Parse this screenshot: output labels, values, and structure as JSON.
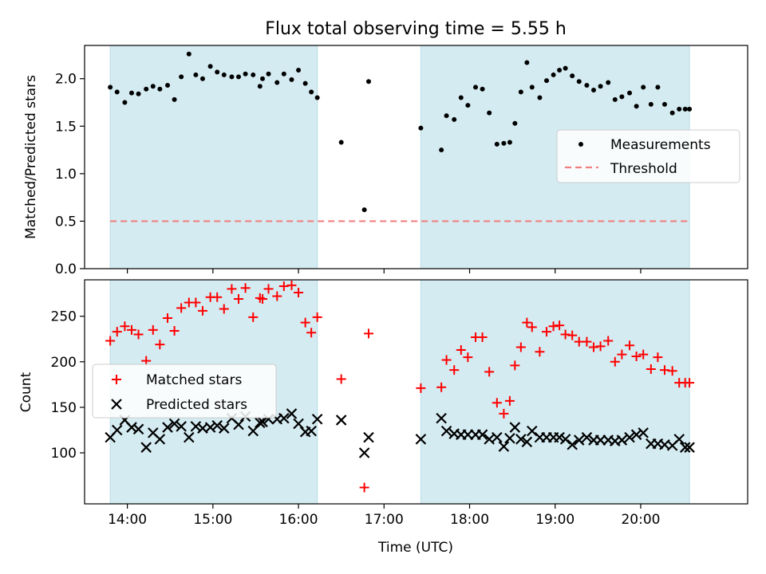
{
  "chart_data": {
    "title": "Flux total observing time = 5.55 h",
    "xlabel": "Time (UTC)",
    "xlim": [
      13.5,
      21.25
    ],
    "x_ticks": [
      14,
      15,
      16,
      17,
      18,
      19,
      20
    ],
    "x_tick_labels": [
      "14:00",
      "15:00",
      "16:00",
      "17:00",
      "18:00",
      "19:00",
      "20:00"
    ],
    "observing_windows": [
      [
        13.8,
        16.22
      ],
      [
        17.43,
        20.57
      ]
    ],
    "window_color": "#d4ebf1",
    "panels": [
      {
        "type": "scatter",
        "ylabel": "Matched/Predicted stars",
        "ylim": [
          0,
          2.35
        ],
        "y_ticks": [
          0,
          0.5,
          1,
          1.5,
          2
        ],
        "y_tick_labels": [
          "0.0",
          "0.5",
          "1.0",
          "1.5",
          "2.0"
        ],
        "legend_position": "center-right",
        "legend": [
          "Measurements",
          "Threshold"
        ],
        "threshold": {
          "name": "Threshold",
          "value": 0.5,
          "x_range": [
            13.8,
            20.57
          ],
          "color": "#f08080"
        },
        "series": [
          {
            "name": "Measurements",
            "marker": "dot",
            "color": "#000000",
            "x": [
              13.8,
              13.88,
              13.97,
              14.05,
              14.13,
              14.22,
              14.3,
              14.38,
              14.47,
              14.55,
              14.63,
              14.72,
              14.8,
              14.88,
              14.97,
              15.05,
              15.13,
              15.22,
              15.3,
              15.38,
              15.47,
              15.55,
              15.58,
              15.65,
              15.75,
              15.83,
              15.92,
              16.0,
              16.08,
              16.15,
              16.22,
              16.5,
              16.77,
              16.82,
              17.43,
              17.67,
              17.73,
              17.82,
              17.9,
              17.98,
              18.07,
              18.15,
              18.23,
              18.32,
              18.4,
              18.47,
              18.53,
              18.6,
              18.67,
              18.73,
              18.82,
              18.9,
              18.98,
              19.05,
              19.12,
              19.2,
              19.28,
              19.37,
              19.45,
              19.53,
              19.62,
              19.7,
              19.78,
              19.87,
              19.95,
              20.03,
              20.12,
              20.2,
              20.28,
              20.37,
              20.45,
              20.52,
              20.57
            ],
            "y": [
              1.91,
              1.86,
              1.75,
              1.85,
              1.84,
              1.89,
              1.92,
              1.89,
              1.93,
              1.78,
              2.02,
              2.26,
              2.04,
              2.0,
              2.13,
              2.07,
              2.04,
              2.02,
              2.02,
              2.05,
              2.04,
              1.92,
              2.0,
              2.05,
              1.96,
              2.05,
              1.99,
              2.09,
              1.95,
              1.86,
              1.8,
              1.33,
              0.62,
              1.97,
              1.48,
              1.25,
              1.61,
              1.57,
              1.8,
              1.72,
              1.91,
              1.89,
              1.64,
              1.31,
              1.32,
              1.33,
              1.53,
              1.86,
              2.17,
              1.91,
              1.8,
              1.98,
              2.04,
              2.09,
              2.11,
              2.03,
              1.97,
              1.93,
              1.88,
              1.92,
              1.96,
              1.78,
              1.81,
              1.85,
              1.71,
              1.91,
              1.73,
              1.91,
              1.73,
              1.64,
              1.68,
              1.68,
              1.68
            ]
          }
        ]
      },
      {
        "type": "scatter",
        "ylabel": "Count",
        "ylim": [
          44,
          290
        ],
        "y_ticks": [
          100,
          150,
          200,
          250
        ],
        "y_tick_labels": [
          "100",
          "150",
          "200",
          "250"
        ],
        "legend_position": "center-left",
        "legend": [
          "Matched stars",
          "Predicted stars"
        ],
        "series": [
          {
            "name": "Matched stars",
            "marker": "plus",
            "color": "#ff0000",
            "x": [
              13.8,
              13.88,
              13.97,
              14.05,
              14.13,
              14.22,
              14.3,
              14.38,
              14.47,
              14.55,
              14.63,
              14.72,
              14.8,
              14.88,
              14.97,
              15.05,
              15.13,
              15.22,
              15.3,
              15.38,
              15.47,
              15.55,
              15.58,
              15.65,
              15.75,
              15.83,
              15.92,
              16.0,
              16.08,
              16.15,
              16.22,
              16.5,
              16.77,
              16.82,
              17.43,
              17.67,
              17.73,
              17.82,
              17.9,
              17.98,
              18.07,
              18.15,
              18.23,
              18.32,
              18.4,
              18.47,
              18.53,
              18.6,
              18.67,
              18.73,
              18.82,
              18.9,
              18.98,
              19.05,
              19.12,
              19.2,
              19.28,
              19.37,
              19.45,
              19.53,
              19.62,
              19.7,
              19.78,
              19.87,
              19.95,
              20.03,
              20.12,
              20.2,
              20.28,
              20.37,
              20.45,
              20.52,
              20.57
            ],
            "y": [
              223,
              233,
              239,
              235,
              230,
              201,
              235,
              219,
              248,
              234,
              259,
              265,
              265,
              256,
              271,
              271,
              258,
              280,
              269,
              281,
              249,
              270,
              269,
              280,
              272,
              283,
              284,
              276,
              243,
              232,
              249,
              181,
              62,
              231,
              171,
              172,
              202,
              191,
              213,
              205,
              227,
              227,
              189,
              155,
              143,
              157,
              196,
              216,
              243,
              238,
              211,
              233,
              239,
              240,
              230,
              229,
              222,
              222,
              216,
              217,
              223,
              200,
              208,
              218,
              206,
              208,
              192,
              205,
              191,
              190,
              177,
              177,
              177
            ]
          },
          {
            "name": "Predicted stars",
            "marker": "cross",
            "color": "#000000",
            "x": [
              13.8,
              13.88,
              13.97,
              14.05,
              14.13,
              14.22,
              14.3,
              14.38,
              14.47,
              14.55,
              14.63,
              14.72,
              14.8,
              14.88,
              14.97,
              15.05,
              15.13,
              15.22,
              15.3,
              15.38,
              15.47,
              15.55,
              15.58,
              15.65,
              15.75,
              15.83,
              15.92,
              16.0,
              16.08,
              16.15,
              16.22,
              16.5,
              16.77,
              16.82,
              17.43,
              17.67,
              17.73,
              17.82,
              17.9,
              17.98,
              18.07,
              18.15,
              18.23,
              18.32,
              18.4,
              18.47,
              18.53,
              18.6,
              18.67,
              18.73,
              18.82,
              18.9,
              18.98,
              19.05,
              19.12,
              19.2,
              19.28,
              19.37,
              19.45,
              19.53,
              19.62,
              19.7,
              19.78,
              19.87,
              19.95,
              20.03,
              20.12,
              20.2,
              20.28,
              20.37,
              20.45,
              20.52,
              20.57
            ],
            "y": [
              117,
              125,
              136,
              128,
              126,
              106,
              122,
              115,
              128,
              132,
              129,
              117,
              129,
              127,
              128,
              130,
              127,
              138,
              131,
              140,
              124,
              133,
              134,
              137,
              137,
              138,
              143,
              132,
              123,
              124,
              137,
              136,
              100,
              117,
              115,
              138,
              124,
              121,
              120,
              120,
              120,
              120,
              115,
              117,
              107,
              116,
              128,
              115,
              112,
              124,
              117,
              117,
              117,
              117,
              115,
              109,
              114,
              117,
              114,
              114,
              114,
              113,
              114,
              117,
              120,
              122,
              110,
              110,
              109,
              108,
              115,
              106,
              106
            ]
          }
        ]
      }
    ]
  }
}
